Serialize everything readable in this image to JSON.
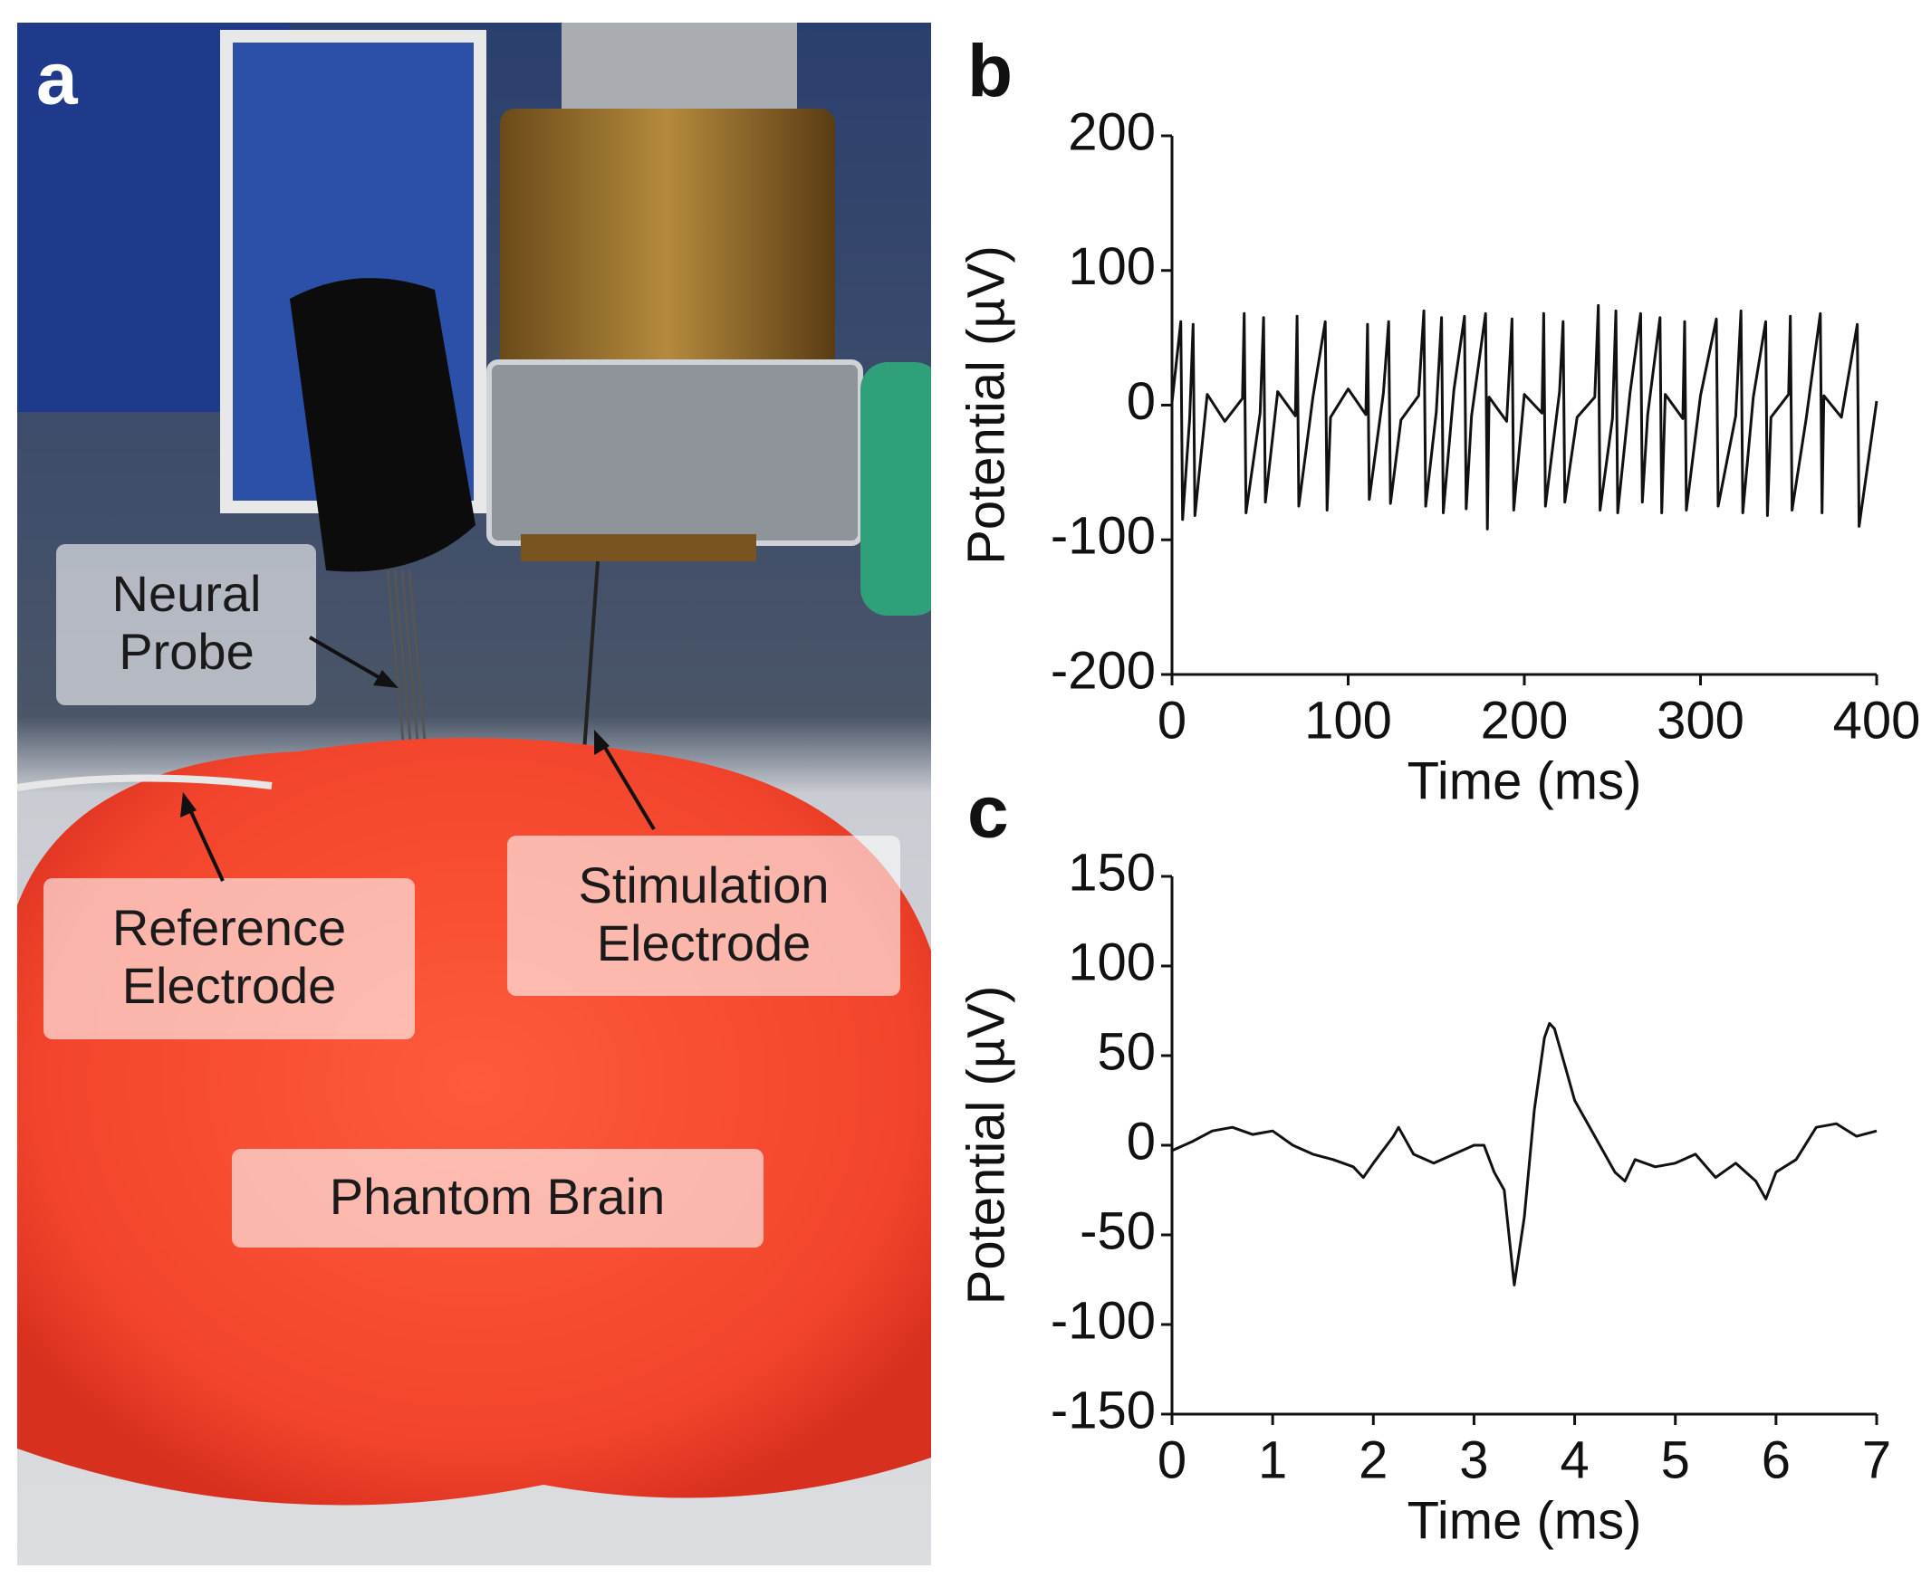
{
  "photo": {
    "panel_label": "a",
    "annotations": [
      {
        "lines": [
          "Neural",
          "Probe"
        ]
      },
      {
        "lines": [
          "Reference",
          "Electrode"
        ]
      },
      {
        "lines": [
          "Stimulation",
          "Electrode"
        ]
      },
      {
        "lines": [
          "Phantom Brain"
        ]
      }
    ]
  },
  "chart_data": [
    {
      "type": "line",
      "panel_label": "b",
      "x_label": "Time (ms)",
      "y_label": "Potential (µV)",
      "color": "#111111",
      "x": [
        0,
        5,
        6,
        10,
        12,
        13,
        20,
        30,
        40,
        41,
        42,
        50,
        52,
        53,
        60,
        70,
        71,
        72,
        80,
        87,
        88,
        90,
        100,
        110,
        111,
        112,
        120,
        123,
        124,
        130,
        140,
        143,
        144,
        150,
        153,
        154,
        160,
        166,
        167,
        170,
        178,
        179,
        180,
        190,
        193,
        194,
        200,
        210,
        211,
        212,
        220,
        222,
        223,
        230,
        240,
        242,
        243,
        250,
        252,
        253,
        260,
        266,
        267,
        270,
        277,
        278,
        280,
        290,
        291,
        292,
        300,
        309,
        310,
        320,
        323,
        324,
        330,
        337,
        338,
        340,
        350,
        351,
        352,
        360,
        368,
        369,
        370,
        380,
        389,
        390,
        400
      ],
      "values": [
        2,
        62,
        -85,
        -10,
        60,
        -82,
        8,
        -12,
        5,
        68,
        -80,
        -6,
        65,
        -72,
        10,
        -8,
        66,
        -75,
        6,
        62,
        -78,
        -9,
        12,
        -7,
        60,
        -70,
        9,
        62,
        -73,
        -11,
        7,
        70,
        -75,
        -5,
        65,
        -80,
        11,
        66,
        -77,
        -8,
        68,
        -92,
        6,
        -12,
        64,
        -78,
        8,
        -6,
        68,
        -75,
        10,
        62,
        -72,
        -9,
        6,
        74,
        -78,
        -10,
        70,
        -80,
        9,
        68,
        -72,
        -7,
        65,
        -80,
        8,
        -10,
        62,
        -78,
        7,
        64,
        -75,
        -8,
        70,
        -80,
        6,
        62,
        -82,
        -9,
        8,
        66,
        -78,
        -10,
        68,
        -80,
        7,
        -9,
        60,
        -90,
        3
      ],
      "xlim": [
        0,
        400
      ],
      "xticks": [
        0,
        100,
        200,
        300,
        400
      ],
      "ylim": [
        -200,
        200
      ],
      "yticks": [
        -200,
        -100,
        0,
        100,
        200
      ]
    },
    {
      "type": "line",
      "panel_label": "c",
      "x_label": "Time (ms)",
      "y_label": "Potential (µV)",
      "color": "#111111",
      "x": [
        0,
        0.2,
        0.4,
        0.6,
        0.8,
        1.0,
        1.2,
        1.4,
        1.6,
        1.8,
        1.9,
        2.0,
        2.2,
        2.25,
        2.4,
        2.6,
        2.8,
        3.0,
        3.1,
        3.2,
        3.3,
        3.4,
        3.5,
        3.6,
        3.7,
        3.75,
        3.8,
        3.9,
        4.0,
        4.2,
        4.4,
        4.5,
        4.6,
        4.8,
        5.0,
        5.2,
        5.4,
        5.6,
        5.8,
        5.9,
        6.0,
        6.2,
        6.4,
        6.6,
        6.8,
        7.0
      ],
      "values": [
        -3,
        2,
        8,
        10,
        6,
        8,
        0,
        -5,
        -8,
        -12,
        -18,
        -10,
        5,
        10,
        -5,
        -10,
        -5,
        0,
        0,
        -15,
        -25,
        -78,
        -40,
        20,
        60,
        68,
        65,
        45,
        25,
        5,
        -15,
        -20,
        -8,
        -12,
        -10,
        -5,
        -18,
        -10,
        -20,
        -30,
        -15,
        -8,
        10,
        12,
        5,
        8
      ],
      "xlim": [
        0,
        7
      ],
      "xticks": [
        0,
        1,
        2,
        3,
        4,
        5,
        6,
        7
      ],
      "ylim": [
        -150,
        150
      ],
      "yticks": [
        -150,
        -100,
        -50,
        0,
        50,
        100,
        150
      ]
    }
  ]
}
